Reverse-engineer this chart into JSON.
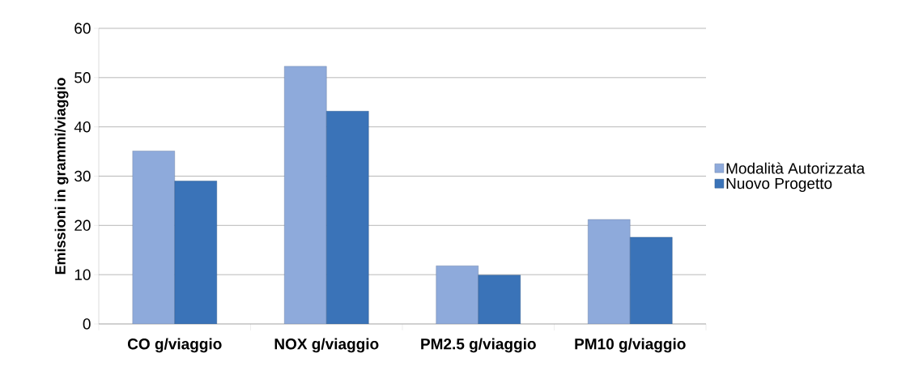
{
  "chart_data": {
    "type": "bar",
    "ylabel": "Emissioni in grammi/viaggio",
    "categories": [
      "CO g/viaggio",
      "NOX g/viaggio",
      "PM2.5 g/viaggio",
      "PM10 g/viaggio"
    ],
    "series": [
      {
        "name": "Modalità Autorizzata",
        "color": "#8eaadb",
        "values": [
          35.1,
          52.3,
          11.8,
          21.2
        ]
      },
      {
        "name": "Nuovo Progetto",
        "color": "#3a73b8",
        "values": [
          29.0,
          43.2,
          9.9,
          17.6
        ]
      }
    ],
    "ylim": [
      0,
      60
    ],
    "yticks": [
      0,
      10,
      20,
      30,
      40,
      50,
      60
    ],
    "grid": "y",
    "legend": "right"
  }
}
